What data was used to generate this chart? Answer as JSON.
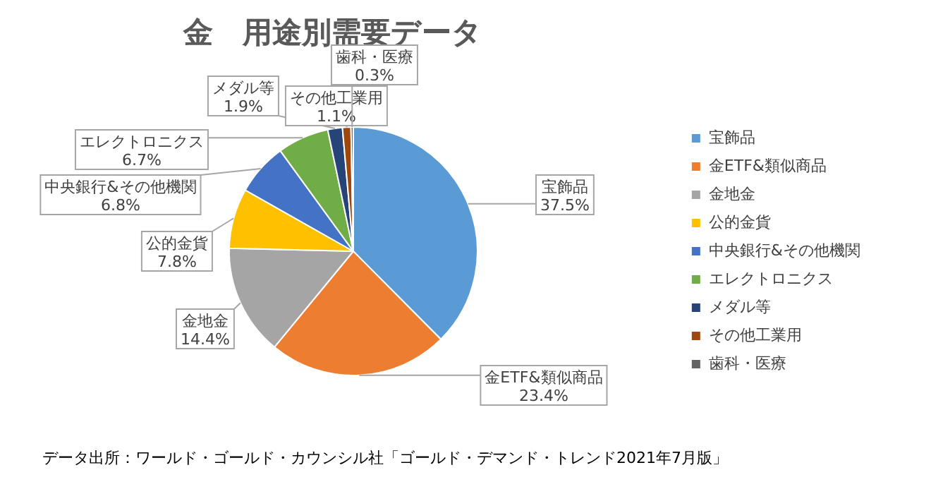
{
  "chart_data": {
    "type": "pie",
    "title": "金　用途別需要データ",
    "categories": [
      "宝飾品",
      "金ETF&類似商品",
      "金地金",
      "公的金貨",
      "中央銀行&その他機関",
      "エレクトロニクス",
      "メダル等",
      "その他工業用",
      "歯科・医療"
    ],
    "values": [
      37.5,
      23.4,
      14.4,
      7.8,
      6.8,
      6.7,
      1.9,
      1.1,
      0.3
    ],
    "colors": [
      "#5b9bd5",
      "#ed7d31",
      "#a5a5a5",
      "#ffc000",
      "#4472c4",
      "#70ad47",
      "#264478",
      "#9e480e",
      "#636363"
    ],
    "value_labels": [
      "37.5%",
      "23.4%",
      "14.4%",
      "7.8%",
      "6.8%",
      "6.7%",
      "1.9%",
      "1.1%",
      "0.3%"
    ],
    "legend": "right",
    "annotations": [
      "データ出所：ワールド・ゴールド・カウンシル社「ゴールド・デマンド・トレンド2021年7月版」"
    ]
  }
}
